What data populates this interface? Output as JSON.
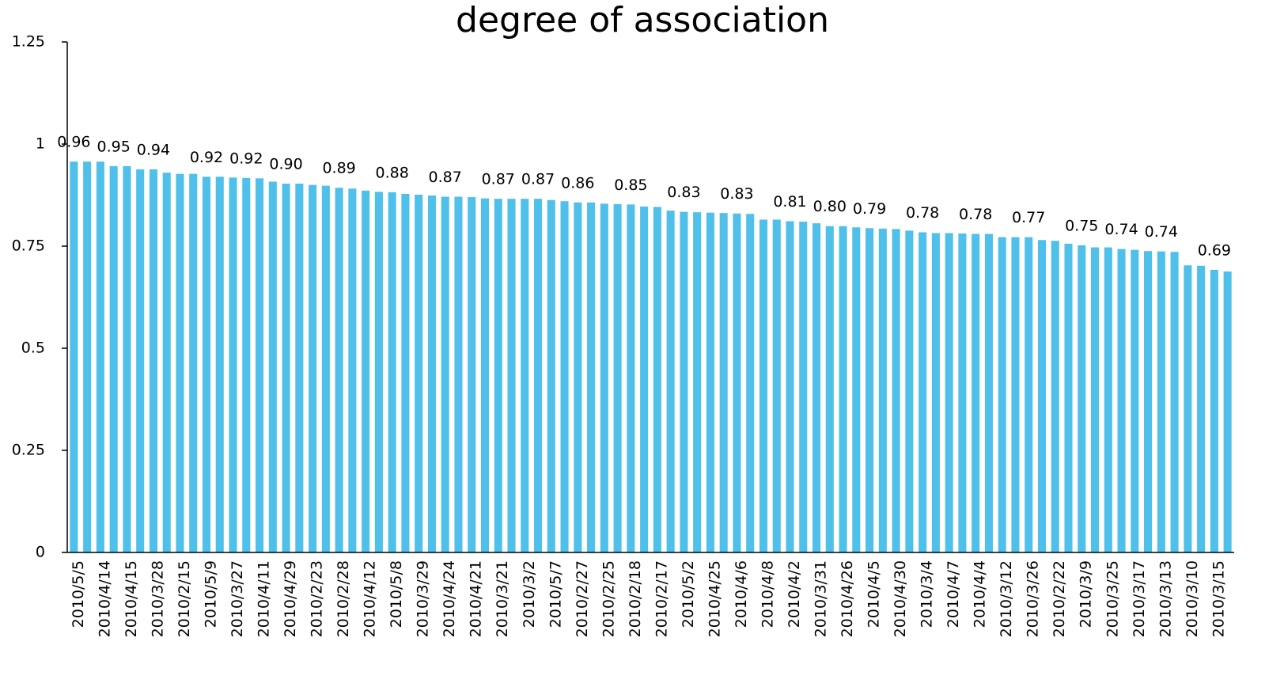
{
  "chart_data": {
    "type": "bar",
    "title": "degree of association",
    "categories": [
      "2010/5/5",
      null,
      "2010/4/14",
      null,
      "2010/4/15",
      null,
      "2010/3/28",
      null,
      "2010/2/15",
      null,
      "2010/5/9",
      null,
      "2010/3/27",
      null,
      "2010/4/11",
      null,
      "2010/4/29",
      null,
      "2010/2/23",
      null,
      "2010/2/28",
      null,
      "2010/4/12",
      null,
      "2010/5/8",
      null,
      "2010/3/29",
      null,
      "2010/4/24",
      null,
      "2010/4/21",
      null,
      "2010/3/21",
      null,
      "2010/3/2",
      null,
      "2010/5/7",
      null,
      "2010/2/27",
      null,
      "2010/2/25",
      null,
      "2010/2/18",
      null,
      "2010/2/17",
      null,
      "2010/5/2",
      null,
      "2010/4/25",
      null,
      "2010/4/6",
      null,
      "2010/4/8",
      null,
      "2010/4/2",
      null,
      "2010/3/31",
      null,
      "2010/4/26",
      null,
      "2010/4/5",
      null,
      "2010/4/30",
      null,
      "2010/3/4",
      null,
      "2010/4/7",
      null,
      "2010/4/4",
      null,
      "2010/3/12",
      null,
      "2010/3/26",
      null,
      "2010/2/22",
      null,
      "2010/3/9",
      null,
      "2010/3/25",
      null,
      "2010/3/17",
      null,
      "2010/3/13",
      null,
      "2010/3/10",
      null,
      "2010/3/15",
      null
    ],
    "values": [
      0.957,
      0.957,
      0.957,
      0.946,
      0.946,
      0.938,
      0.938,
      0.93,
      0.927,
      0.927,
      0.92,
      0.92,
      0.918,
      0.917,
      0.916,
      0.908,
      0.903,
      0.903,
      0.9,
      0.898,
      0.893,
      0.891,
      0.886,
      0.883,
      0.882,
      0.878,
      0.876,
      0.874,
      0.871,
      0.871,
      0.87,
      0.867,
      0.866,
      0.866,
      0.866,
      0.866,
      0.863,
      0.86,
      0.857,
      0.857,
      0.854,
      0.853,
      0.852,
      0.847,
      0.846,
      0.837,
      0.834,
      0.833,
      0.832,
      0.831,
      0.83,
      0.829,
      0.815,
      0.815,
      0.811,
      0.81,
      0.806,
      0.799,
      0.799,
      0.796,
      0.794,
      0.793,
      0.792,
      0.788,
      0.784,
      0.782,
      0.782,
      0.781,
      0.78,
      0.78,
      0.772,
      0.772,
      0.772,
      0.765,
      0.763,
      0.756,
      0.752,
      0.747,
      0.747,
      0.743,
      0.741,
      0.738,
      0.737,
      0.736,
      0.703,
      0.702,
      0.692,
      0.688
    ],
    "value_labels": [
      "0.96",
      null,
      null,
      "0.95",
      null,
      null,
      "0.94",
      null,
      null,
      null,
      "0.92",
      null,
      null,
      "0.92",
      null,
      null,
      "0.90",
      null,
      null,
      null,
      "0.89",
      null,
      null,
      null,
      "0.88",
      null,
      null,
      null,
      "0.87",
      null,
      null,
      null,
      "0.87",
      null,
      null,
      "0.87",
      null,
      null,
      "0.86",
      null,
      null,
      null,
      "0.85",
      null,
      null,
      null,
      "0.83",
      null,
      null,
      null,
      "0.83",
      null,
      null,
      null,
      "0.81",
      null,
      null,
      "0.80",
      null,
      null,
      "0.79",
      null,
      null,
      null,
      "0.78",
      null,
      null,
      null,
      "0.78",
      null,
      null,
      null,
      "0.77",
      null,
      null,
      null,
      "0.75",
      null,
      null,
      "0.74",
      null,
      null,
      "0.74",
      null,
      null,
      null,
      "0.69",
      null
    ],
    "color": "#4fc0ea",
    "ylim": [
      0,
      1.25
    ],
    "yticks": [
      0,
      0.25,
      0.5,
      0.75,
      1,
      1.25
    ],
    "grid": false
  }
}
